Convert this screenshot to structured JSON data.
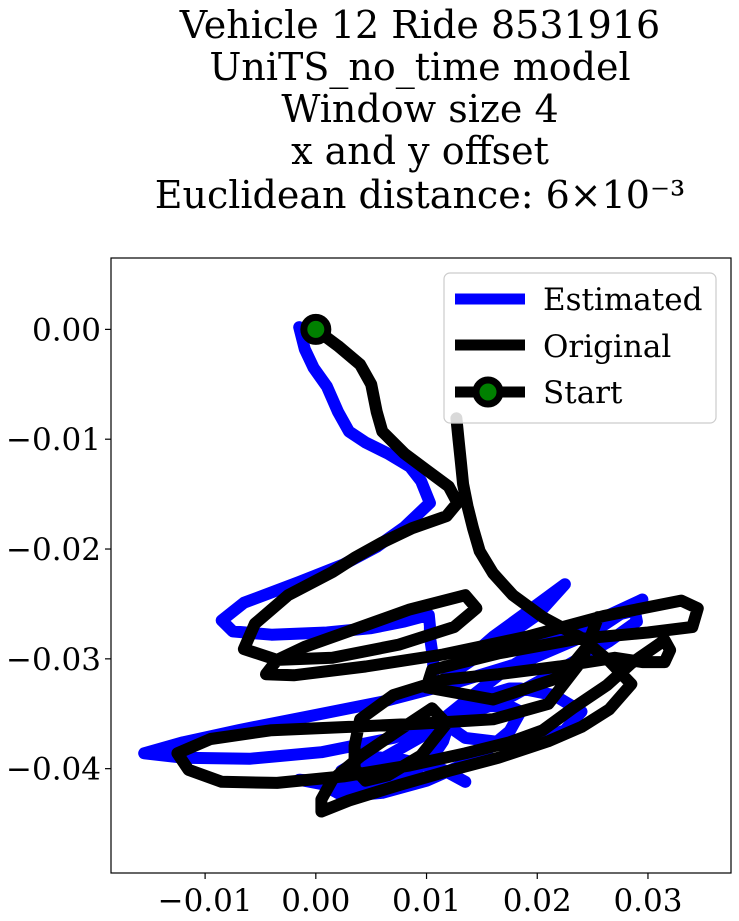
{
  "chart_data": {
    "type": "line",
    "title_lines": [
      "Vehicle 12 Ride 8531916",
      "UniTS_no_time model",
      "Window size 4",
      "x and y offset",
      "Euclidean distance: 6×10⁻³"
    ],
    "xlabel": "",
    "ylabel": "",
    "xlim": [
      -0.0185,
      0.0375
    ],
    "ylim": [
      -0.0495,
      0.0065
    ],
    "x_ticks": [
      -0.01,
      0.0,
      0.01,
      0.02,
      0.03
    ],
    "x_tick_labels": [
      "−0.01",
      "0.00",
      "0.01",
      "0.02",
      "0.03"
    ],
    "y_ticks": [
      0.0,
      -0.01,
      -0.02,
      -0.03,
      -0.04
    ],
    "y_tick_labels": [
      "0.00",
      "−0.01",
      "−0.02",
      "−0.03",
      "−0.04"
    ],
    "grid": false,
    "legend_position": "top-right",
    "legend": [
      "Estimated",
      "Original",
      "Start"
    ],
    "colors": {
      "estimated": "#0000ff",
      "original": "#000000",
      "start_fill": "#008000",
      "start_edge": "#000000"
    },
    "series": [
      {
        "name": "Estimated",
        "x": [
          -0.0015,
          -0.001,
          -0.0002,
          0.001,
          0.002,
          0.003,
          0.003,
          0.0045,
          0.0065,
          0.0085,
          0.0095,
          0.0103,
          0.0103,
          0.008,
          0.0055,
          0.0025,
          -0.0015,
          -0.0065,
          -0.0085,
          -0.0075,
          -0.004,
          0.001,
          0.005,
          0.008,
          0.0102,
          0.0102,
          0.0103,
          0.0103,
          0.0106,
          0.0106,
          0.0106,
          0.015,
          0.02,
          0.0225,
          0.019,
          0.016,
          0.0135,
          0.0135,
          0.0175,
          0.022,
          0.0265,
          0.0295,
          0.0295,
          0.025,
          0.019,
          0.0125,
          0.006,
          -0.001,
          -0.007,
          -0.012,
          -0.0155,
          -0.0155,
          -0.012,
          -0.006,
          0.0005,
          0.007,
          0.012,
          0.0155,
          0.0175,
          0.0185,
          0.0175,
          0.0145,
          0.01,
          0.006,
          0.0025,
          0.0005,
          -0.0015,
          -0.0015,
          0.001,
          0.005,
          0.008,
          0.0105,
          0.0115,
          0.012,
          0.0142,
          0.0162,
          0.0175,
          0.0185,
          0.0215,
          0.024,
          0.0225,
          0.0198,
          0.0168,
          0.0135,
          0.0115,
          0.0115,
          0.0168,
          0.0215,
          0.0265,
          0.029,
          0.0288,
          0.026,
          0.0215,
          0.017,
          0.0132,
          0.0095,
          0.006,
          0.004,
          0.003,
          0.002,
          0.0023,
          0.0045,
          0.0075,
          0.0115,
          0.0135
        ],
        "y": [
          0.0002,
          -0.0018,
          -0.0035,
          -0.0052,
          -0.0075,
          -0.0093,
          -0.0093,
          -0.0103,
          -0.0113,
          -0.0125,
          -0.0138,
          -0.0158,
          -0.0158,
          -0.018,
          -0.0198,
          -0.0214,
          -0.023,
          -0.0249,
          -0.0265,
          -0.0275,
          -0.0278,
          -0.0276,
          -0.0272,
          -0.0266,
          -0.026,
          -0.026,
          -0.027,
          -0.028,
          -0.03,
          -0.031,
          -0.0325,
          -0.0295,
          -0.026,
          -0.0232,
          -0.0258,
          -0.028,
          -0.0302,
          -0.0302,
          -0.029,
          -0.0275,
          -0.026,
          -0.0246,
          -0.0246,
          -0.0276,
          -0.0302,
          -0.0322,
          -0.0339,
          -0.0353,
          -0.0365,
          -0.0376,
          -0.0386,
          -0.0386,
          -0.039,
          -0.0391,
          -0.0385,
          -0.0372,
          -0.0355,
          -0.0343,
          -0.0343,
          -0.0348,
          -0.0366,
          -0.0391,
          -0.0411,
          -0.0422,
          -0.0425,
          -0.0414,
          -0.041,
          -0.041,
          -0.0412,
          -0.0419,
          -0.0409,
          -0.039,
          -0.0375,
          -0.0359,
          -0.0341,
          -0.0331,
          -0.0327,
          -0.0327,
          -0.0333,
          -0.0348,
          -0.0365,
          -0.0375,
          -0.0376,
          -0.0372,
          -0.0358,
          -0.0358,
          -0.0339,
          -0.0313,
          -0.0284,
          -0.0266,
          -0.0256,
          -0.0263,
          -0.0283,
          -0.0311,
          -0.0341,
          -0.0371,
          -0.0391,
          -0.0405,
          -0.0416,
          -0.0416,
          -0.0402,
          -0.0389,
          -0.0391,
          -0.0401,
          -0.0412
        ]
      },
      {
        "name": "Original",
        "x": [
          0.0,
          0.002,
          0.004,
          0.005,
          0.005,
          0.0055,
          0.006,
          0.008,
          0.01,
          0.012,
          0.0128,
          0.0118,
          0.0087,
          0.006,
          0.0035,
          0.0015,
          -0.0025,
          -0.0055,
          -0.0065,
          -0.0035,
          0.0015,
          0.0075,
          0.0125,
          0.0145,
          0.0135,
          0.0085,
          0.0035,
          -0.001,
          -0.0035,
          -0.0045,
          -0.002,
          0.0045,
          0.0115,
          0.019,
          0.026,
          0.033,
          0.0345,
          0.034,
          0.03,
          0.0235,
          0.0165,
          0.0105,
          0.01,
          0.016,
          0.0223,
          0.0245,
          0.0255,
          0.024,
          0.021,
          0.016,
          0.0095,
          0.003,
          -0.004,
          -0.0095,
          -0.0125,
          -0.0115,
          -0.0085,
          -0.0035,
          0.0025,
          0.0085,
          0.0135,
          0.0175,
          0.0205,
          0.0232,
          0.0263,
          0.0285,
          0.0305,
          0.0315,
          0.032,
          0.0315,
          0.0295,
          0.027,
          0.022,
          0.0165,
          0.0115,
          0.007,
          0.004,
          0.0035,
          0.0035,
          0.0045,
          0.0065,
          0.0095,
          0.0118,
          0.0105,
          0.0075,
          0.004,
          0.0015,
          0.0005,
          0.0005,
          0.003,
          0.0075,
          0.012,
          0.0165,
          0.021,
          0.024,
          0.0265,
          0.0285,
          0.0265,
          0.024,
          0.0205,
          0.0178,
          0.016,
          0.0148,
          0.0142,
          0.0137,
          0.0133,
          0.0131,
          0.0129,
          0.0127
        ],
        "y": [
          0.0,
          -0.0015,
          -0.0032,
          -0.005,
          -0.005,
          -0.0075,
          -0.0093,
          -0.0113,
          -0.0128,
          -0.0143,
          -0.0158,
          -0.017,
          -0.0181,
          -0.0194,
          -0.0208,
          -0.0221,
          -0.0242,
          -0.0268,
          -0.0291,
          -0.0301,
          -0.0299,
          -0.0287,
          -0.0271,
          -0.0254,
          -0.0242,
          -0.0255,
          -0.0273,
          -0.0289,
          -0.0301,
          -0.0314,
          -0.0315,
          -0.0307,
          -0.0296,
          -0.028,
          -0.0261,
          -0.0247,
          -0.0254,
          -0.0271,
          -0.0276,
          -0.0282,
          -0.0295,
          -0.031,
          -0.0326,
          -0.0337,
          -0.0316,
          -0.0289,
          -0.0262,
          -0.0302,
          -0.0341,
          -0.0355,
          -0.0359,
          -0.0362,
          -0.0365,
          -0.0373,
          -0.0386,
          -0.0401,
          -0.0412,
          -0.0413,
          -0.0407,
          -0.0397,
          -0.0386,
          -0.0376,
          -0.0365,
          -0.0345,
          -0.0324,
          -0.0304,
          -0.029,
          -0.0283,
          -0.0292,
          -0.0303,
          -0.0303,
          -0.0299,
          -0.0307,
          -0.0314,
          -0.0319,
          -0.0333,
          -0.0355,
          -0.0379,
          -0.04,
          -0.0411,
          -0.0406,
          -0.0388,
          -0.0359,
          -0.0345,
          -0.0365,
          -0.0389,
          -0.041,
          -0.0428,
          -0.0439,
          -0.0429,
          -0.0415,
          -0.0402,
          -0.039,
          -0.0375,
          -0.0362,
          -0.0346,
          -0.0323,
          -0.0302,
          -0.0281,
          -0.0262,
          -0.0242,
          -0.0222,
          -0.0202,
          -0.0181,
          -0.0161,
          -0.0141,
          -0.0121,
          -0.0101,
          -0.0081
        ]
      }
    ],
    "start_point": {
      "name": "Start",
      "x": 0.0,
      "y": 0.0
    }
  }
}
